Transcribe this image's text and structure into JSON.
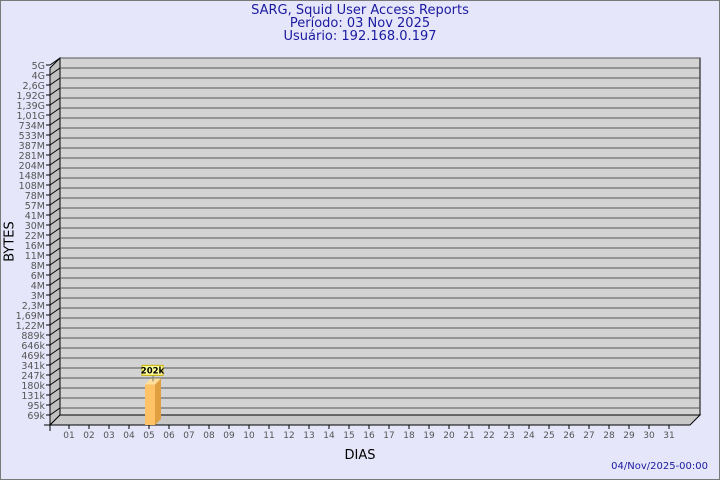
{
  "chart_data": {
    "type": "bar",
    "title": "SARG, Squid User Access Reports",
    "subtitle_period": "Período: 03 Nov 2025",
    "subtitle_user": "Usuário: 192.168.0.197",
    "xlabel": "DIAS",
    "ylabel": "BYTES",
    "y_scale": "log",
    "grid": true,
    "y_tick_labels": [
      "5G",
      "4G",
      "2,6G",
      "1,92G",
      "1,39G",
      "1,01G",
      "734M",
      "533M",
      "387M",
      "281M",
      "204M",
      "148M",
      "108M",
      "78M",
      "57M",
      "41M",
      "30M",
      "22M",
      "16M",
      "11M",
      "8M",
      "6M",
      "4M",
      "3M",
      "2,3M",
      "1,69M",
      "1,22M",
      "889k",
      "646k",
      "469k",
      "341k",
      "247k",
      "180k",
      "131k",
      "95k",
      "69k"
    ],
    "categories": [
      "01",
      "02",
      "03",
      "04",
      "05",
      "06",
      "07",
      "08",
      "09",
      "10",
      "11",
      "12",
      "13",
      "14",
      "15",
      "16",
      "17",
      "18",
      "19",
      "20",
      "21",
      "22",
      "23",
      "24",
      "25",
      "26",
      "27",
      "28",
      "29",
      "30",
      "31"
    ],
    "values": [
      null,
      null,
      202000,
      null,
      null,
      null,
      null,
      null,
      null,
      null,
      null,
      null,
      null,
      null,
      null,
      null,
      null,
      null,
      null,
      null,
      null,
      null,
      null,
      null,
      null,
      null,
      null,
      null,
      null,
      null,
      null
    ],
    "data_labels": {
      "03": "202k"
    },
    "colors": {
      "bar_front": "#ffc266",
      "bar_side": "#e0a040",
      "bar_top": "#ffe09a",
      "plot_bg": "#d3d3d3",
      "label_bg": "#ffff99",
      "title": "#1a1aa0"
    }
  },
  "footer_timestamp": "04/Nov/2025-00:00"
}
